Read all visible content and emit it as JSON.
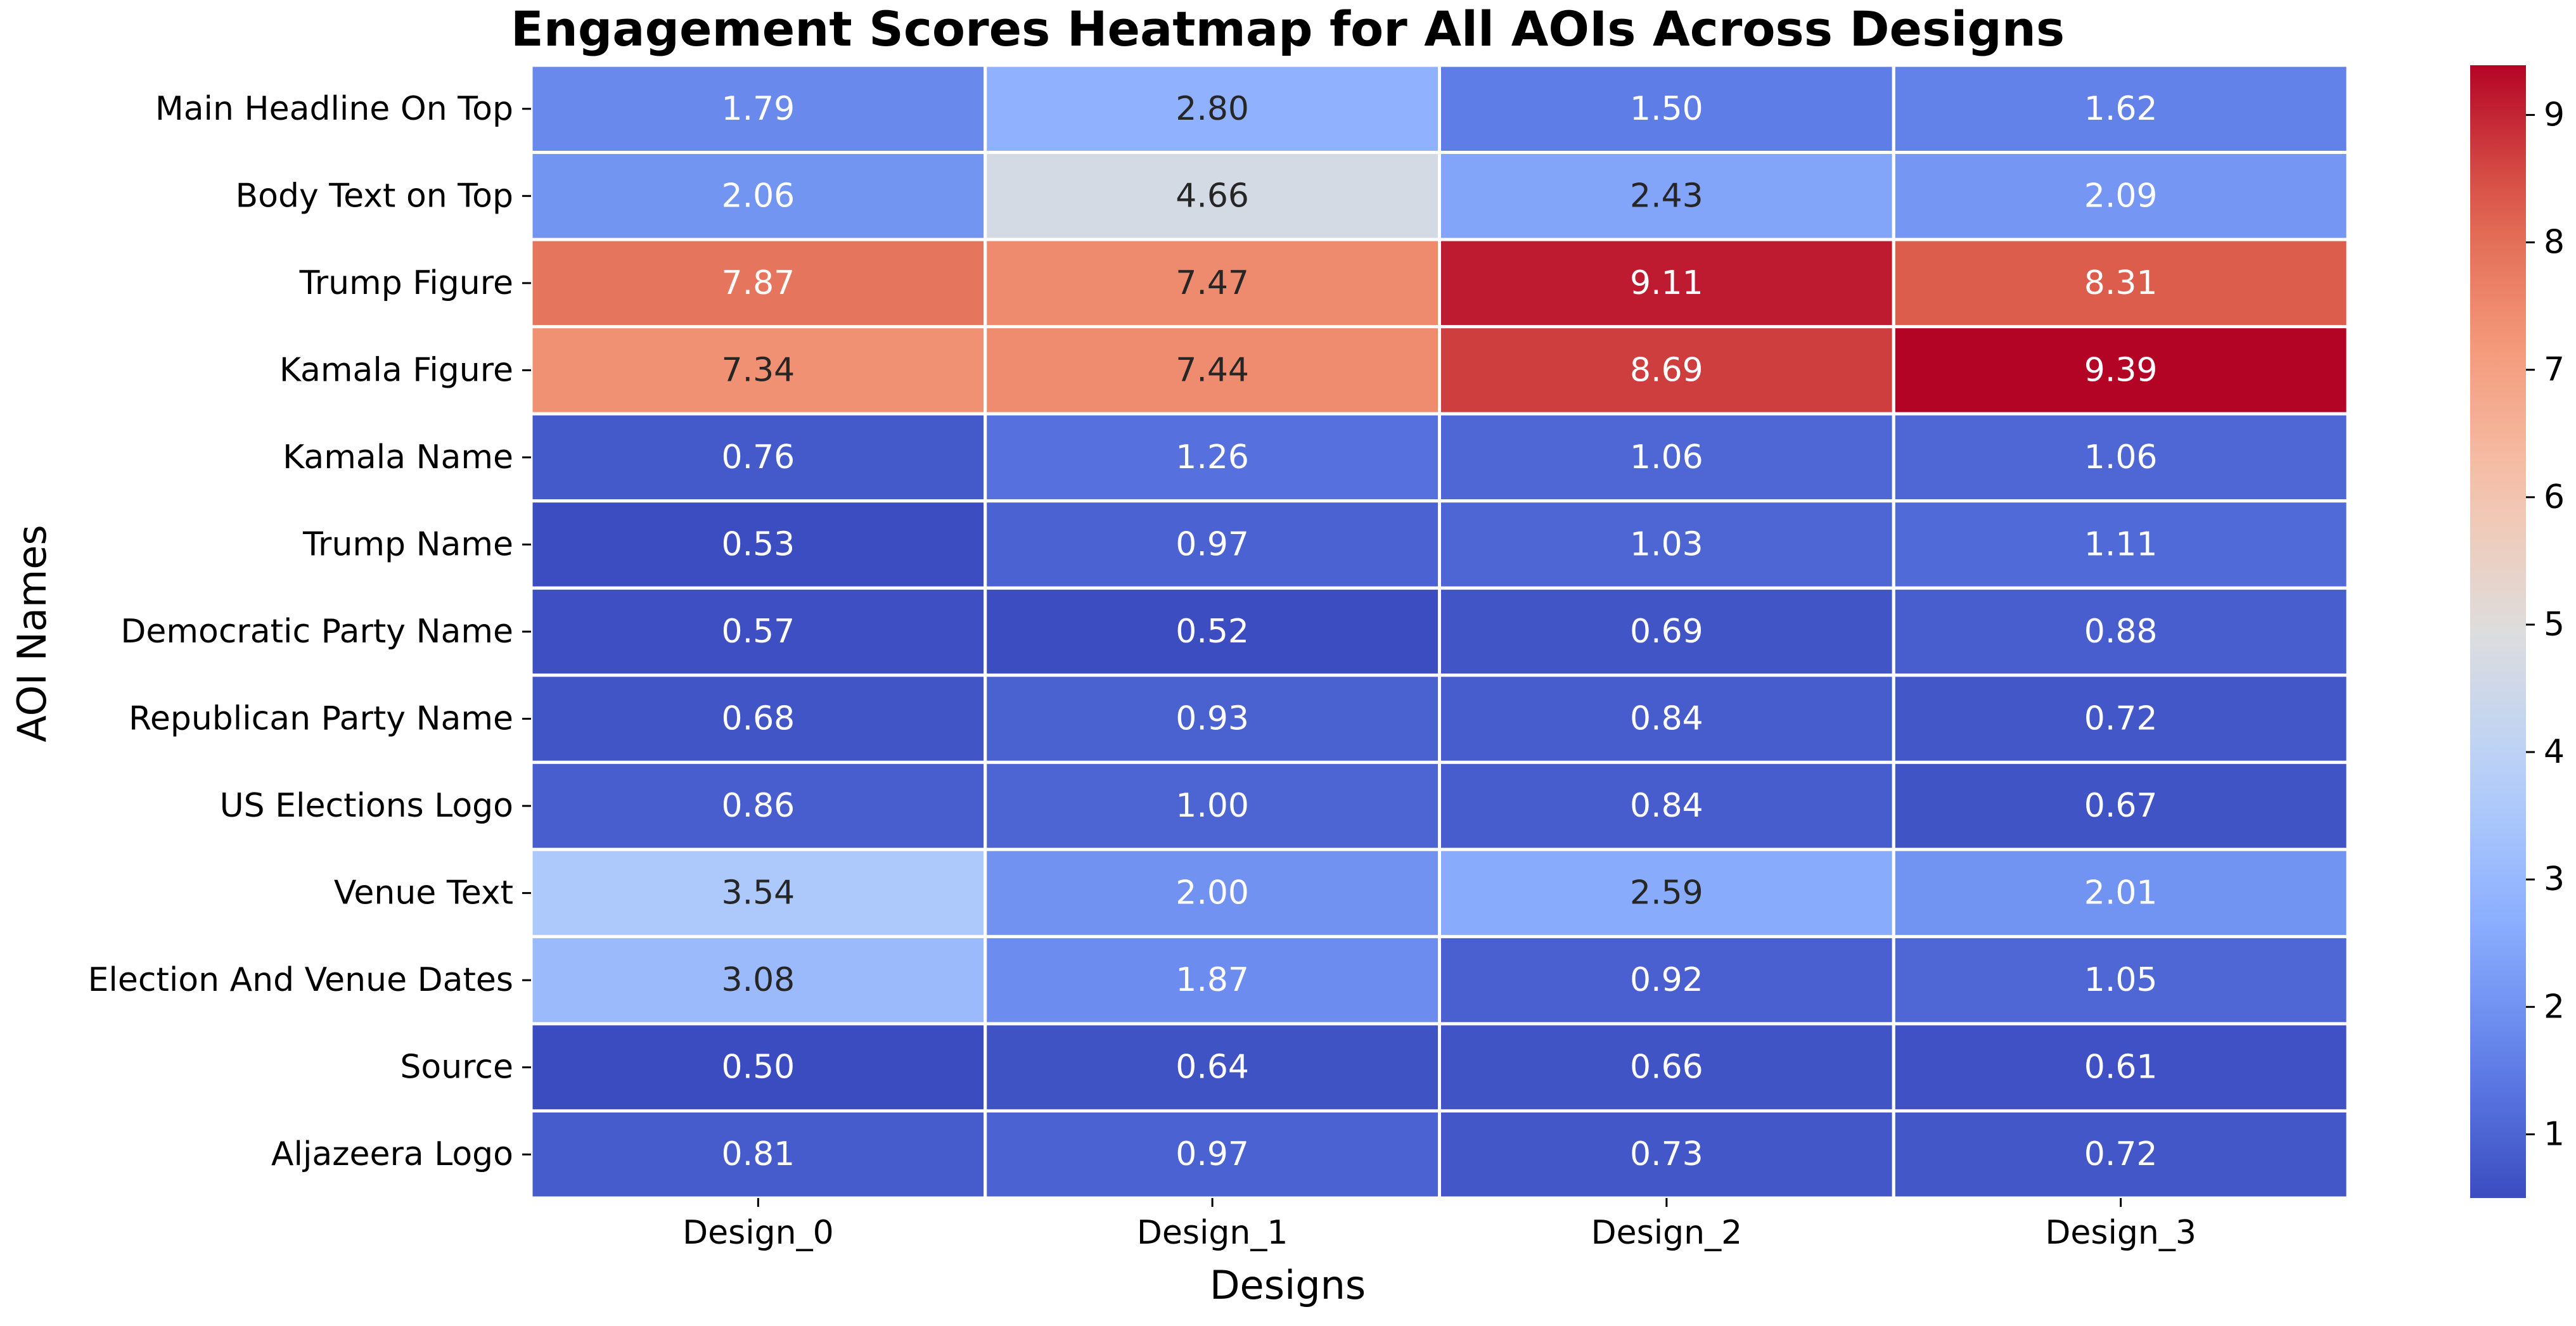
{
  "chart_data": {
    "type": "heatmap",
    "title": "Engagement Scores Heatmap for All AOIs Across Designs",
    "xlabel": "Designs",
    "ylabel": "AOI Names",
    "x": [
      "Design_0",
      "Design_1",
      "Design_2",
      "Design_3"
    ],
    "y": [
      "Main Headline On Top",
      "Body Text on Top",
      "Trump Figure",
      "Kamala Figure",
      "Kamala Name",
      "Trump Name",
      "Democratic Party Name",
      "Republican Party Name",
      "US Elections Logo",
      "Venue Text",
      "Election And Venue Dates",
      "Source",
      "Aljazeera Logo"
    ],
    "values": [
      [
        1.79,
        2.8,
        1.5,
        1.62
      ],
      [
        2.06,
        4.66,
        2.43,
        2.09
      ],
      [
        7.87,
        7.47,
        9.11,
        8.31
      ],
      [
        7.34,
        7.44,
        8.69,
        9.39
      ],
      [
        0.76,
        1.26,
        1.06,
        1.06
      ],
      [
        0.53,
        0.97,
        1.03,
        1.11
      ],
      [
        0.57,
        0.52,
        0.69,
        0.88
      ],
      [
        0.68,
        0.93,
        0.84,
        0.72
      ],
      [
        0.86,
        1.0,
        0.84,
        0.67
      ],
      [
        3.54,
        2.0,
        2.59,
        2.01
      ],
      [
        3.08,
        1.87,
        0.92,
        1.05
      ],
      [
        0.5,
        0.64,
        0.66,
        0.61
      ],
      [
        0.81,
        0.97,
        0.73,
        0.72
      ]
    ],
    "cell_label_format": "2 decimals",
    "colormap": "coolwarm",
    "colorbar": {
      "range": [
        0.5,
        9.39
      ],
      "ticks": [
        1,
        2,
        3,
        4,
        5,
        6,
        7,
        8,
        9
      ]
    },
    "legend": "colorbar-right",
    "grid": false
  }
}
